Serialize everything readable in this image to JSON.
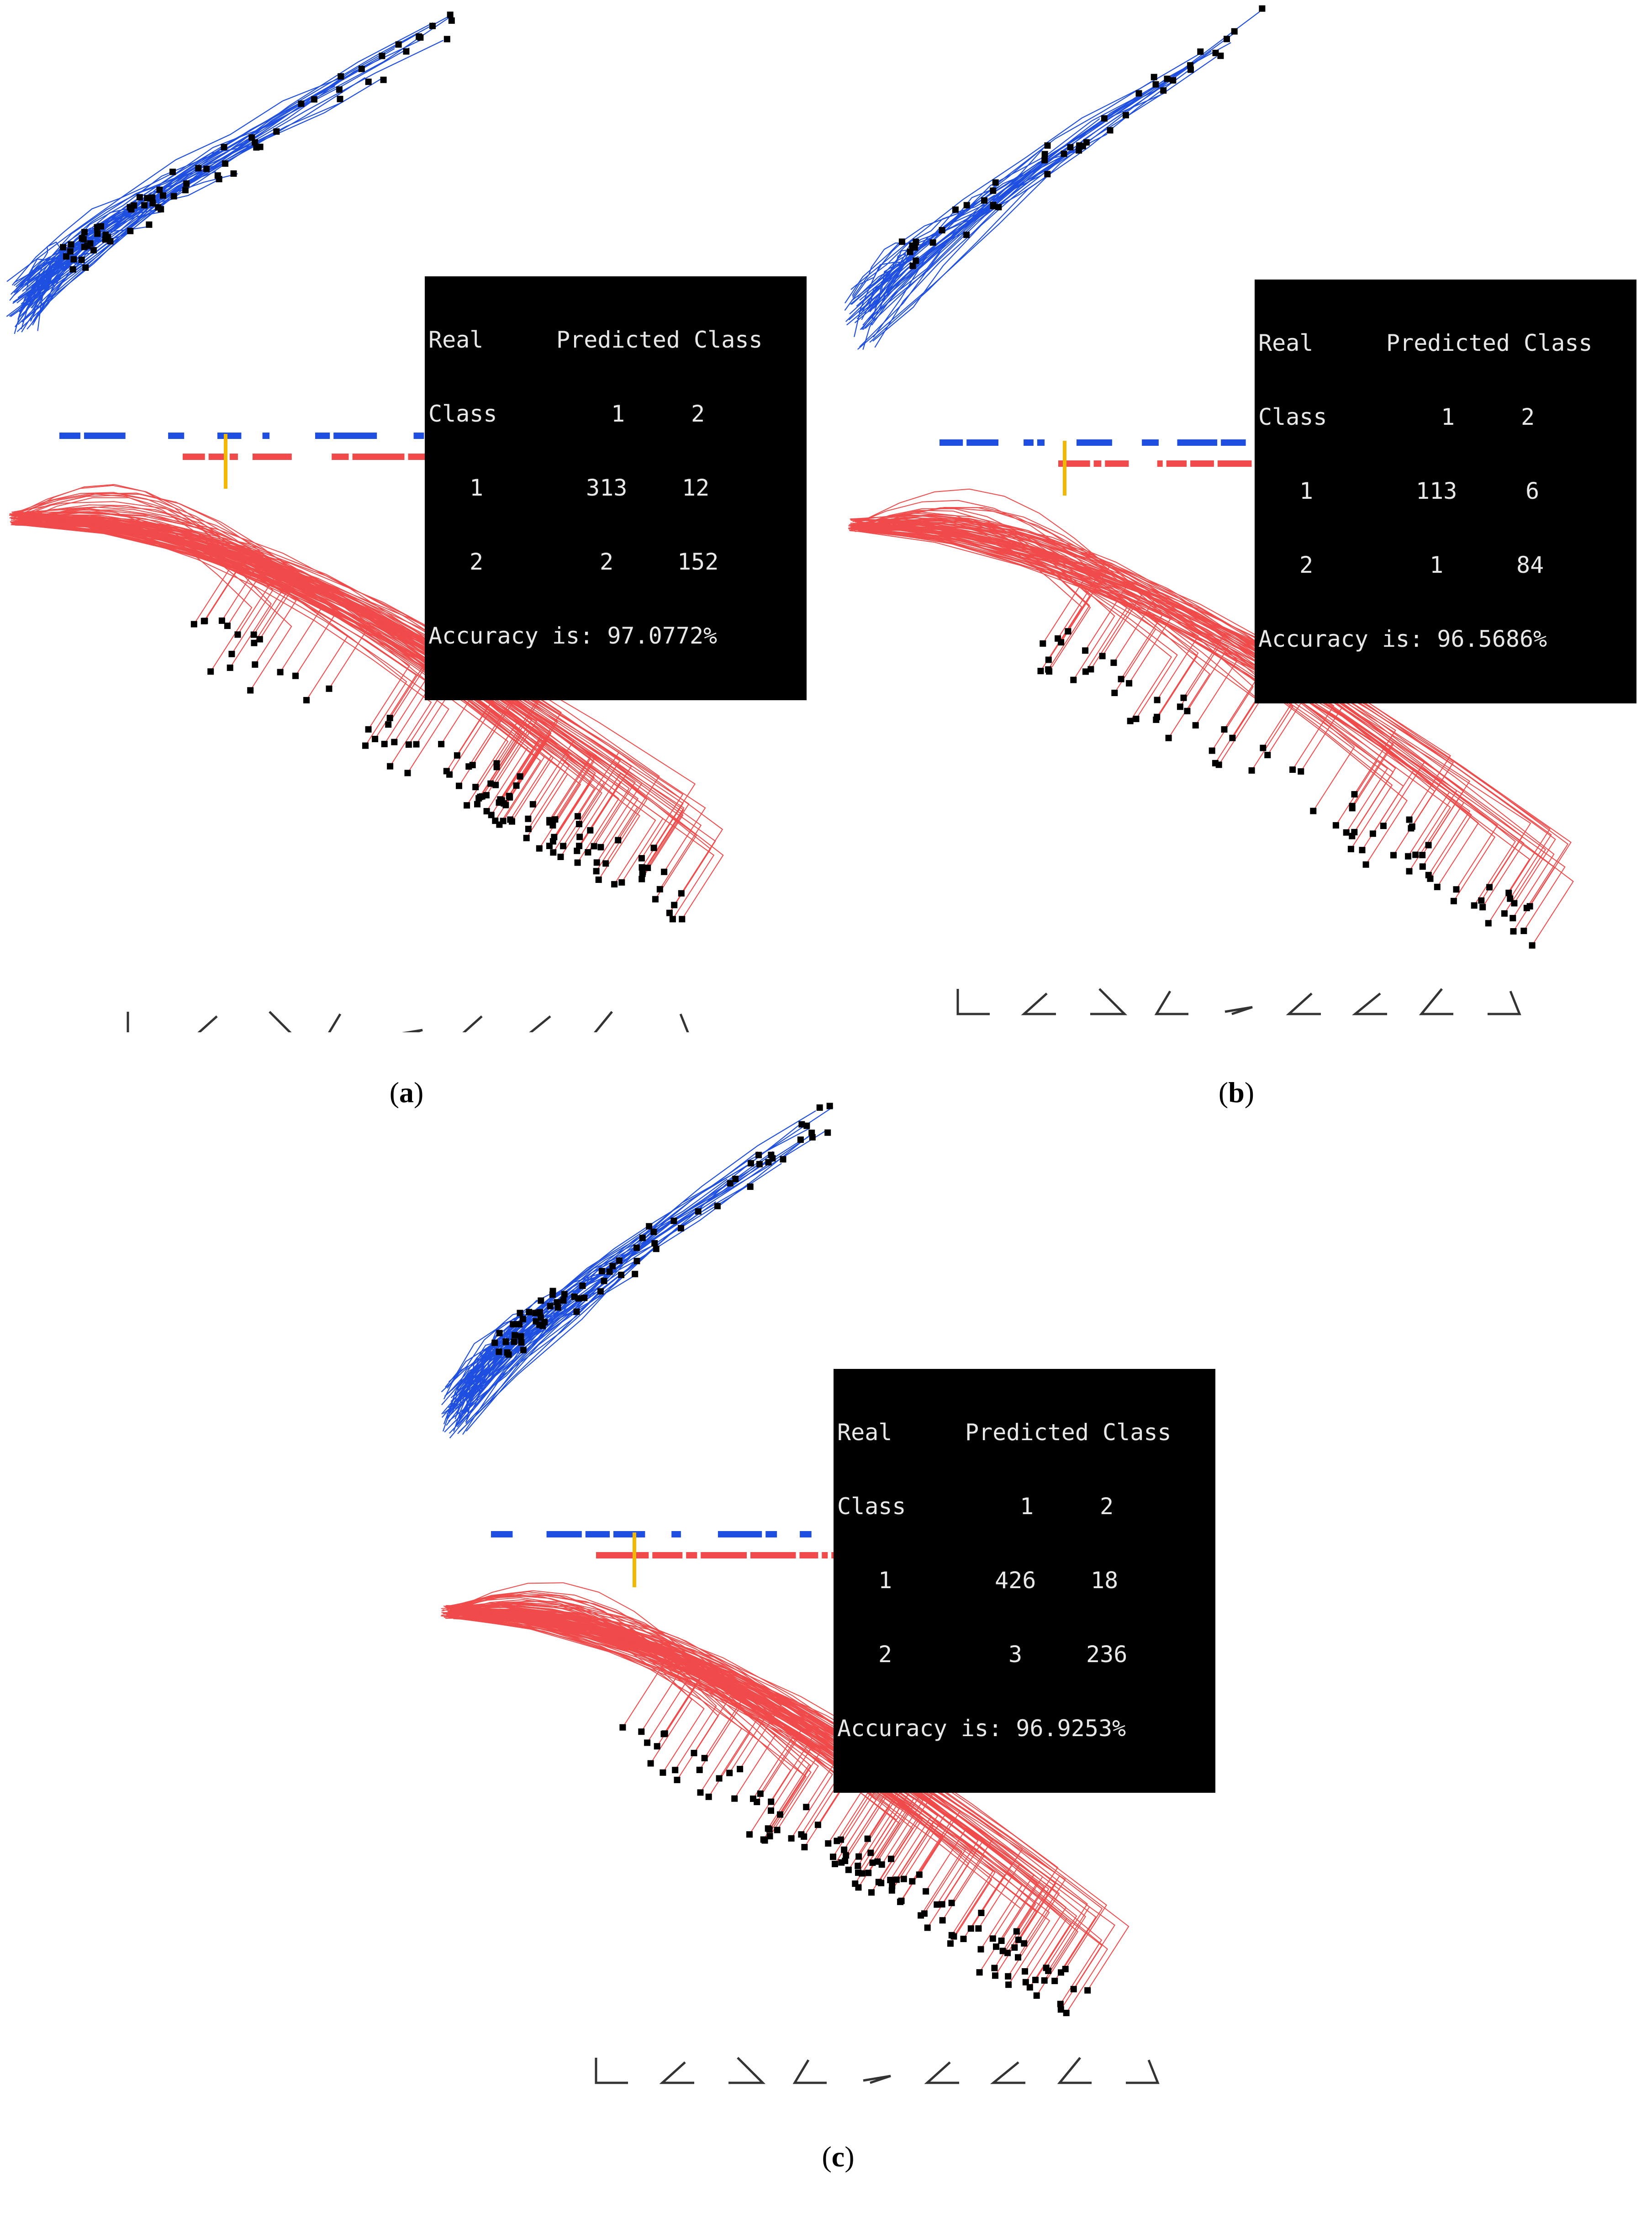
{
  "colors": {
    "class1": "#1f4fe0",
    "class2": "#f04a4a",
    "threshold": "#f2b705",
    "points": "#000000",
    "glyph": "#333333"
  },
  "panels": [
    {
      "id": "a",
      "caption_letter": "a",
      "matrix": {
        "header_left": "Real",
        "header_right": "Predicted Class",
        "class_label": "Class",
        "col1": "1",
        "col2": "2",
        "r1_label": "1",
        "r1_c1": "313",
        "r1_c2": "12",
        "r2_label": "2",
        "r2_c1": "2",
        "r2_c2": "152",
        "accuracy": "Accuracy is: 97.0772%"
      }
    },
    {
      "id": "b",
      "caption_letter": "b",
      "matrix": {
        "header_left": "Real",
        "header_right": "Predicted Class",
        "class_label": "Class",
        "col1": "1",
        "col2": "2",
        "r1_label": "1",
        "r1_c1": "113",
        "r1_c2": "6",
        "r2_label": "2",
        "r2_c1": "1",
        "r2_c2": "84",
        "accuracy": "Accuracy is: 96.5686%"
      }
    },
    {
      "id": "c",
      "caption_letter": "c",
      "matrix": {
        "header_left": "Real",
        "header_right": "Predicted Class",
        "class_label": "Class",
        "col1": "1",
        "col2": "2",
        "r1_label": "1",
        "r1_c1": "426",
        "r1_c2": "18",
        "r2_label": "2",
        "r2_c1": "3",
        "r2_c2": "236",
        "accuracy": "Accuracy is: 96.9253%"
      }
    }
  ],
  "chart_data": [
    {
      "type": "table",
      "panel": "a",
      "columns": [
        "Real Class",
        "Predicted 1",
        "Predicted 2"
      ],
      "rows": [
        [
          "1",
          313,
          12
        ],
        [
          "2",
          2,
          152
        ]
      ],
      "accuracy_percent": 97.0772,
      "visual": "Shifted Paired Coordinates: class 1 (blue) and class 2 (red) polylines with endpoints (black squares), 1-D projection strip with threshold, 9 angle glyphs"
    },
    {
      "type": "table",
      "panel": "b",
      "columns": [
        "Real Class",
        "Predicted 1",
        "Predicted 2"
      ],
      "rows": [
        [
          "1",
          113,
          6
        ],
        [
          "2",
          1,
          84
        ]
      ],
      "accuracy_percent": 96.5686
    },
    {
      "type": "table",
      "panel": "c",
      "columns": [
        "Real Class",
        "Predicted 1",
        "Predicted 2"
      ],
      "rows": [
        [
          "1",
          426,
          18
        ],
        [
          "2",
          3,
          236
        ]
      ],
      "accuracy_percent": 96.9253
    }
  ]
}
